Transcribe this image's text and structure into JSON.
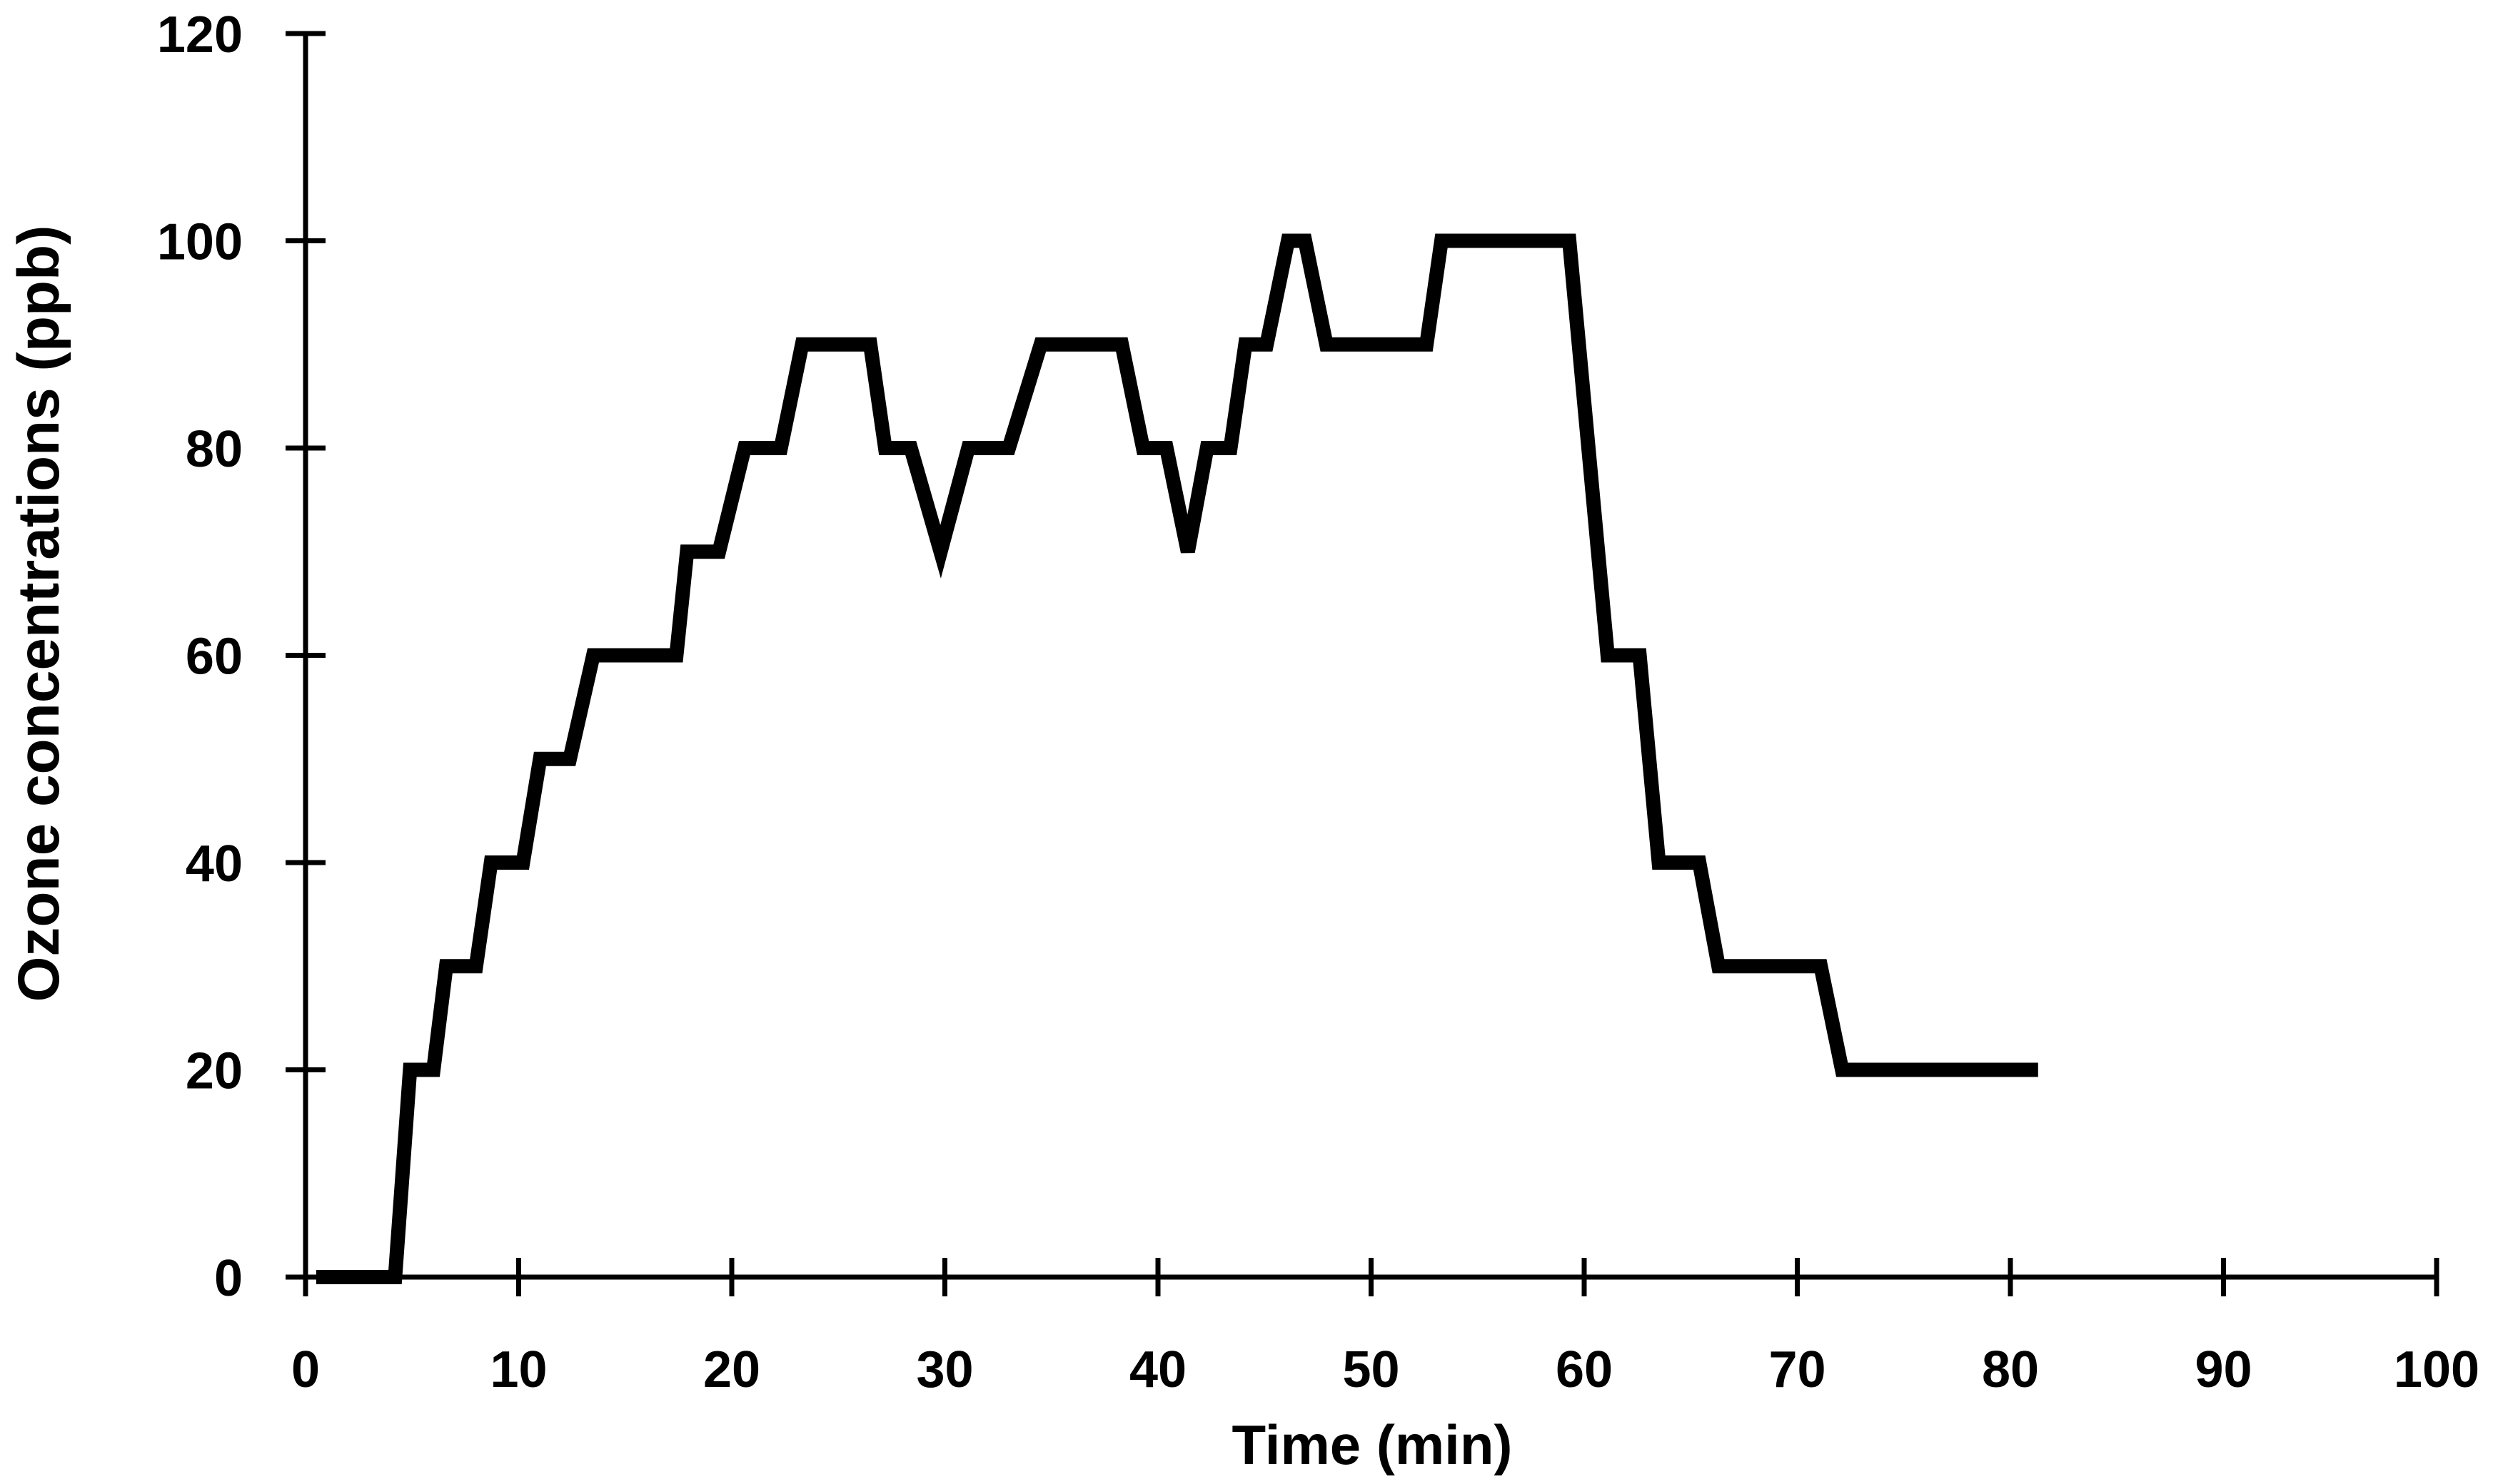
{
  "page": {
    "background_color": "#ffffff",
    "text_color": "#000000"
  },
  "chart_data": {
    "type": "line",
    "title": "",
    "xlabel": "Time (min)",
    "ylabel": "Ozone concentrations (ppb)",
    "xlim": [
      0,
      100
    ],
    "ylim": [
      0,
      120
    ],
    "x_ticks": [
      0,
      10,
      20,
      30,
      40,
      50,
      60,
      70,
      80,
      90,
      100
    ],
    "y_ticks": [
      0,
      20,
      40,
      60,
      80,
      100,
      120
    ],
    "grid": false,
    "legend": "none",
    "line_color": "#000000",
    "axis_color": "#000000",
    "series": [
      {
        "name": "Ozone concentration",
        "points": [
          [
            0.5,
            0
          ],
          [
            4.2,
            0
          ],
          [
            4.9,
            20
          ],
          [
            6,
            20
          ],
          [
            6.6,
            30
          ],
          [
            8,
            30
          ],
          [
            8.7,
            40
          ],
          [
            10.2,
            40
          ],
          [
            11,
            50
          ],
          [
            12.4,
            50
          ],
          [
            13.5,
            60
          ],
          [
            17.4,
            60
          ],
          [
            17.9,
            70
          ],
          [
            19.4,
            70
          ],
          [
            20.6,
            80
          ],
          [
            22.3,
            80
          ],
          [
            23.3,
            90
          ],
          [
            26.5,
            90
          ],
          [
            27.2,
            80
          ],
          [
            28.4,
            80
          ],
          [
            29.8,
            70
          ],
          [
            31.1,
            80
          ],
          [
            33,
            80
          ],
          [
            34.5,
            90
          ],
          [
            38.3,
            90
          ],
          [
            39.3,
            80
          ],
          [
            40.4,
            80
          ],
          [
            41.4,
            70
          ],
          [
            42.3,
            80
          ],
          [
            43.4,
            80
          ],
          [
            44.1,
            90
          ],
          [
            45.1,
            90
          ],
          [
            46.1,
            100
          ],
          [
            46.9,
            100
          ],
          [
            47.9,
            90
          ],
          [
            52.6,
            90
          ],
          [
            53.3,
            100
          ],
          [
            59.3,
            100
          ],
          [
            61.1,
            60
          ],
          [
            62.6,
            60
          ],
          [
            63.5,
            40
          ],
          [
            65.4,
            40
          ],
          [
            66.3,
            30
          ],
          [
            71.1,
            30
          ],
          [
            72.1,
            20
          ],
          [
            81.3,
            20
          ]
        ]
      }
    ]
  }
}
